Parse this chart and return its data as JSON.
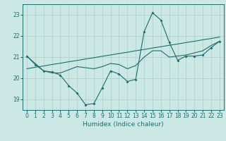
{
  "x_humidex": [
    0,
    1,
    2,
    3,
    4,
    5,
    6,
    7,
    8,
    9,
    10,
    11,
    12,
    13,
    14,
    15,
    16,
    17,
    18,
    19,
    20,
    21,
    22,
    23
  ],
  "y_curve": [
    21.05,
    20.65,
    20.35,
    20.3,
    20.15,
    19.65,
    19.3,
    18.75,
    18.8,
    19.55,
    20.35,
    20.2,
    19.85,
    19.95,
    22.2,
    23.1,
    22.75,
    21.7,
    20.85,
    21.05,
    21.05,
    21.1,
    21.45,
    21.75
  ],
  "y_line1": [
    20.45,
    20.52,
    20.58,
    20.65,
    20.71,
    20.78,
    20.84,
    20.91,
    20.97,
    21.04,
    21.1,
    21.17,
    21.23,
    21.3,
    21.36,
    21.43,
    21.49,
    21.56,
    21.62,
    21.69,
    21.75,
    21.82,
    21.88,
    21.95
  ],
  "y_line2": [
    21.05,
    20.7,
    20.35,
    20.25,
    20.25,
    20.4,
    20.55,
    20.5,
    20.45,
    20.55,
    20.7,
    20.65,
    20.45,
    20.6,
    21.0,
    21.3,
    21.3,
    21.0,
    21.05,
    21.1,
    21.2,
    21.3,
    21.55,
    21.75
  ],
  "bg_color": "#cce8e4",
  "line_color": "#1a6e6e",
  "grid_color": "#aaceca",
  "xlabel": "Humidex (Indice chaleur)",
  "ylim": [
    18.5,
    23.5
  ],
  "xlim": [
    -0.5,
    23.5
  ],
  "yticks": [
    19,
    20,
    21,
    22,
    23
  ],
  "xticks": [
    0,
    1,
    2,
    3,
    4,
    5,
    6,
    7,
    8,
    9,
    10,
    11,
    12,
    13,
    14,
    15,
    16,
    17,
    18,
    19,
    20,
    21,
    22,
    23
  ],
  "tick_fontsize": 5.5,
  "xlabel_fontsize": 6.5
}
